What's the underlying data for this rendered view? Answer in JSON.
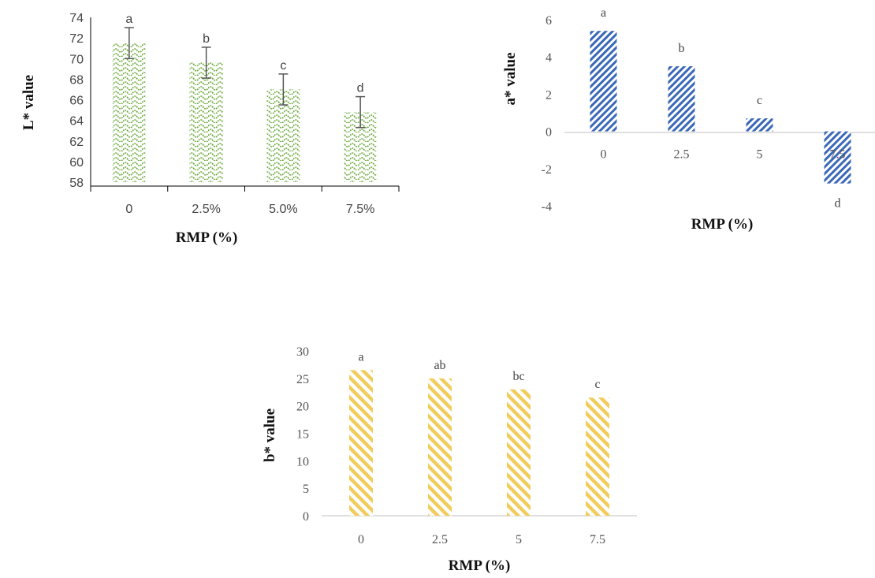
{
  "chart_data": [
    {
      "id": "L",
      "type": "bar",
      "categories": [
        "0",
        "2.5%",
        "5.0%",
        "7.5%"
      ],
      "values": [
        71.5,
        69.6,
        67.0,
        64.8
      ],
      "errors": [
        1.5,
        1.5,
        1.5,
        1.5
      ],
      "letters": [
        "a",
        "b",
        "c",
        "d"
      ],
      "xlabel": "RMP (%)",
      "ylabel": "L* value",
      "ylim": [
        58,
        74
      ],
      "yticks": [
        "58",
        "60",
        "62",
        "64",
        "66",
        "68",
        "70",
        "72",
        "74"
      ],
      "color": "#6aaa3a",
      "grid": false
    },
    {
      "id": "a",
      "type": "bar",
      "categories": [
        "0",
        "2.5",
        "5",
        "7.5"
      ],
      "values": [
        5.4,
        3.5,
        0.7,
        -2.8
      ],
      "letters": [
        "a",
        "b",
        "c",
        "d"
      ],
      "xlabel": "RMP (%)",
      "ylabel": "a* value",
      "ylim": [
        -4,
        6
      ],
      "yticks": [
        "-4",
        "-2",
        "0",
        "2",
        "4",
        "6"
      ],
      "color": "#3a68b8",
      "grid": false
    },
    {
      "id": "b",
      "type": "bar",
      "categories": [
        "0",
        "2.5",
        "5",
        "7.5"
      ],
      "values": [
        26.5,
        25.0,
        23.0,
        21.5
      ],
      "letters": [
        "a",
        "ab",
        "bc",
        "c"
      ],
      "xlabel": "RMP (%)",
      "ylabel": "b* value",
      "ylim": [
        0,
        30
      ],
      "yticks": [
        "0",
        "5",
        "10",
        "15",
        "20",
        "25",
        "30"
      ],
      "color": "#f2cc5a",
      "grid": false
    }
  ]
}
